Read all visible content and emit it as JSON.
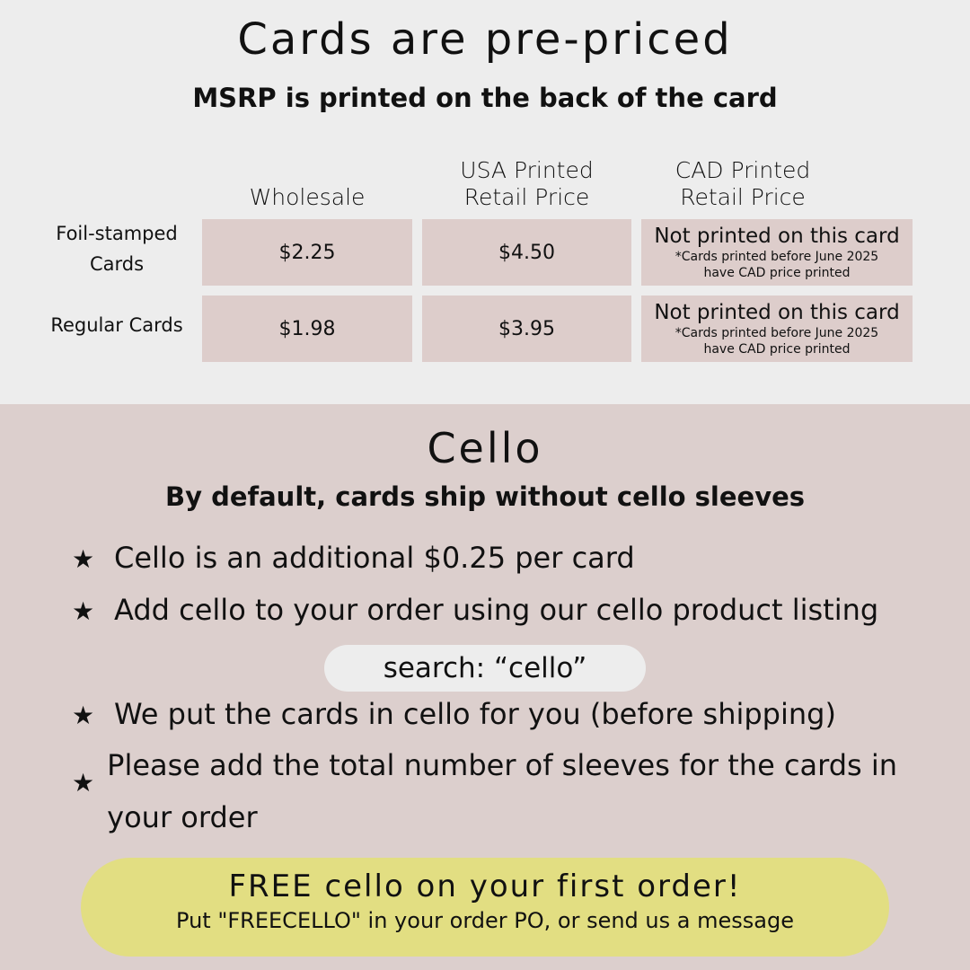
{
  "header": {
    "title": "Cards are pre-priced",
    "subtitle": "MSRP is printed on the back of the card"
  },
  "table": {
    "columns": [
      [
        "Wholesale"
      ],
      [
        "USA Printed",
        "Retail Price"
      ],
      [
        "CAD Printed",
        "Retail Price"
      ]
    ],
    "rows": [
      {
        "label": [
          "Foil-stamped",
          "Cards"
        ],
        "wholesale": "$2.25",
        "usa": "$4.50",
        "cad": "Not printed on this card",
        "cad_note": [
          "*Cards printed before June 2025",
          "have CAD price printed"
        ]
      },
      {
        "label": [
          "Regular Cards"
        ],
        "wholesale": "$1.98",
        "usa": "$3.95",
        "cad": "Not printed on this card",
        "cad_note": [
          "*Cards printed before June 2025",
          "have CAD price printed"
        ]
      }
    ]
  },
  "cello": {
    "title": "Cello",
    "subtitle": "By default, cards ship without cello sleeves",
    "bullet_icon": "star-icon",
    "bullets": [
      "Cello is an additional $0.25 per card",
      "Add cello to your order using our cello product listing",
      "We put the cards in cello for you (before shipping)",
      "Please add the total number of sleeves for the cards in your order"
    ],
    "search": "search: “cello”",
    "promo": {
      "title": "FREE cello on your first order!",
      "text": "Put \"FREECELLO\" in your order PO, or send us a message"
    }
  },
  "colors": {
    "top_bg": "#ededed",
    "bottom_bg": "#dccfcd",
    "cell_bg": "#ddcdcb",
    "promo_bg": "#e2de82"
  }
}
